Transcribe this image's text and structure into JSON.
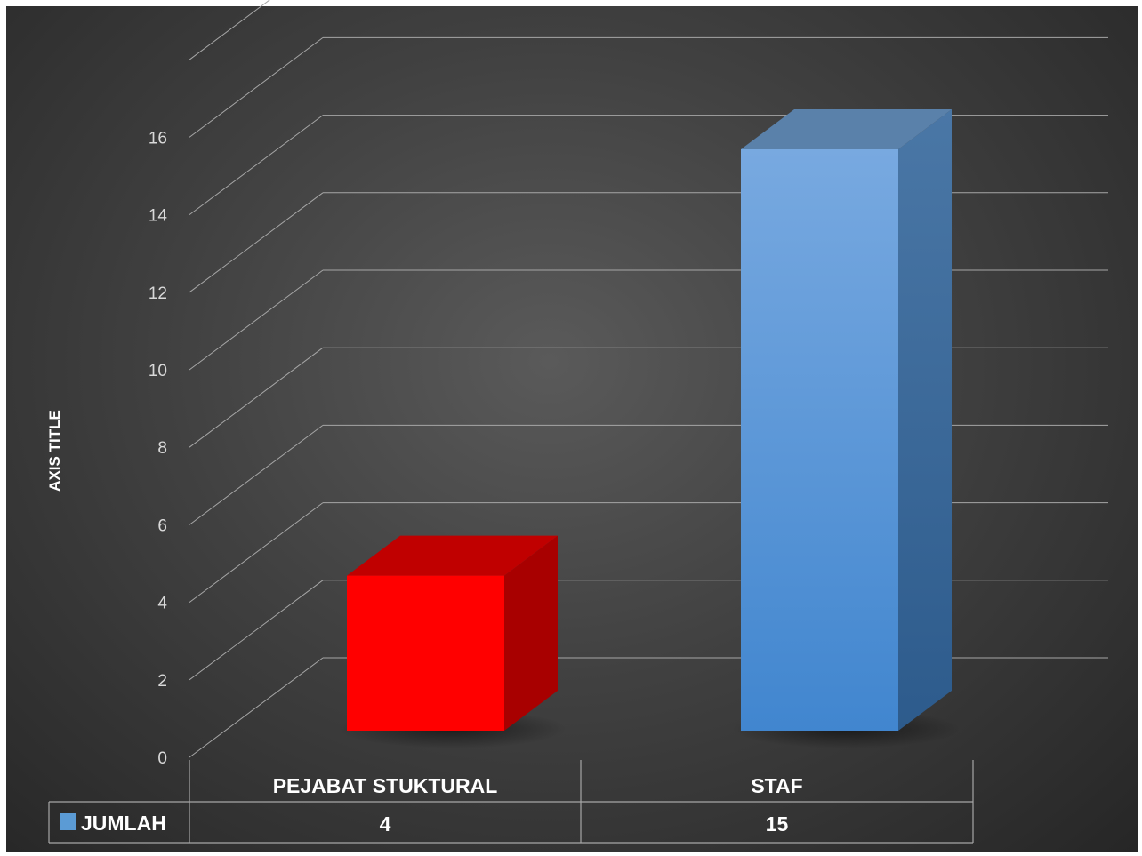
{
  "chart_data": {
    "type": "bar",
    "style": "3d-column-with-data-table",
    "categories": [
      "PEJABAT STUKTURAL",
      "STAF"
    ],
    "series": [
      {
        "name": "JUMLAH",
        "values": [
          4,
          15
        ],
        "colors": [
          "#ff0000",
          "#5b9bd5"
        ]
      }
    ],
    "ylabel": "AXIS TITLE",
    "xlabel": "",
    "ylim": [
      0,
      16
    ],
    "y_ticks": [
      0,
      2,
      4,
      6,
      8,
      10,
      12,
      14,
      16
    ],
    "grid": true,
    "legend": "data-table-left",
    "data_table": {
      "series_label": "JUMLAH",
      "values": [
        "4",
        "15"
      ]
    },
    "colors": {
      "background": "#3f3f3f",
      "gridline": "#bfbfbf",
      "text": "#ffffff",
      "legend_key": "#5b9bd5"
    }
  }
}
